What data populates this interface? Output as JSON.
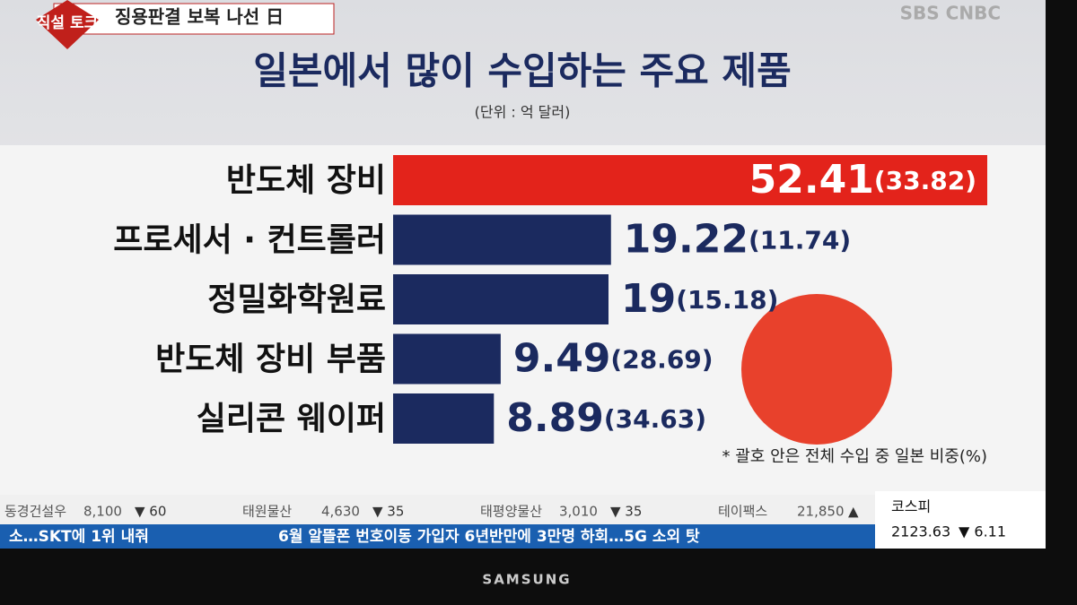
{
  "channel": "SBS CNBC",
  "program": {
    "tag": "직설 토크",
    "headline": "징용판결 보복 나선 日"
  },
  "chart_data": {
    "type": "hbar",
    "title": "일본에서 많이 수입하는 주요 제품",
    "subtitle": "(단위 : 억 달러)",
    "categories": [
      "반도체 장비",
      "프로세서 · 컨트롤러",
      "정밀화학원료",
      "반도체 장비 부품",
      "실리콘 웨이퍼"
    ],
    "values": [
      52.41,
      19.22,
      19,
      9.49,
      8.89
    ],
    "shares": [
      33.82,
      11.74,
      15.18,
      28.69,
      34.63
    ],
    "share_labels": [
      "(33.82)",
      "(11.74)",
      "(15.18)",
      "(28.69)",
      "(34.63)"
    ],
    "colors": [
      "#e3231b",
      "#1b2a5f",
      "#1b2a5f",
      "#1b2a5f",
      "#1b2a5f"
    ],
    "note": "* 괄호 안은 전체 수입 중 일본 비중(%)"
  },
  "stocks": [
    {
      "name": "동경건설우",
      "price": "8,100",
      "change": "▼ 60"
    },
    {
      "name": "태원물산",
      "price": "4,630",
      "change": "▼ 35"
    },
    {
      "name": "태평양물산",
      "price": "3,010",
      "change": "▼ 35"
    },
    {
      "name": "테이팩스",
      "price": "21,850",
      "change": "▲"
    }
  ],
  "index": {
    "name": "코스피",
    "value": "2123.63",
    "change": "▼ 6.11"
  },
  "news": [
    "소…SKT에 1위 내줘",
    "6월 알뜰폰 번호이동 가입자 6년반만에 3만명 하회…5G 소외 탓"
  ],
  "brand": "SAMSUNG"
}
